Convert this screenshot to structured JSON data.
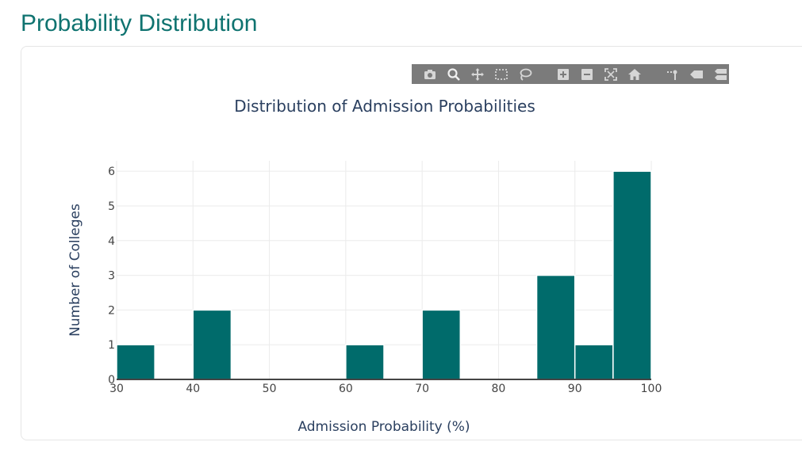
{
  "page": {
    "title": "Probability Distribution"
  },
  "modebar": {
    "background": "#7b7b7b",
    "icons": [
      "camera-icon",
      "zoom-icon",
      "pan-icon",
      "box-select-icon",
      "lasso-select-icon",
      "zoom-in-icon",
      "zoom-out-icon",
      "autoscale-icon",
      "reset-axes-icon",
      "spike-lines-icon",
      "hover-closest-icon",
      "hover-compare-icon"
    ]
  },
  "colors": {
    "title": "#0f7370",
    "bar_fill": "#006b6b",
    "bar_outline": "#ffffff",
    "grid": "#ebebeb",
    "axis_line": "#444444",
    "text": "#2a3f5f"
  },
  "chart_data": {
    "type": "bar",
    "title": "Distribution of Admission Probabilities",
    "xlabel": "Admission Probability (%)",
    "ylabel": "Number of Colleges",
    "xlim": [
      30,
      100
    ],
    "ylim": [
      0,
      6.3
    ],
    "x_ticks": [
      30,
      40,
      50,
      60,
      70,
      80,
      90,
      100
    ],
    "y_ticks": [
      0,
      1,
      2,
      3,
      4,
      5,
      6
    ],
    "grid": true,
    "bin_size": 5,
    "bins": [
      {
        "start": 30,
        "end": 35,
        "count": 1
      },
      {
        "start": 35,
        "end": 40,
        "count": 0
      },
      {
        "start": 40,
        "end": 45,
        "count": 2
      },
      {
        "start": 45,
        "end": 50,
        "count": 0
      },
      {
        "start": 50,
        "end": 55,
        "count": 0
      },
      {
        "start": 55,
        "end": 60,
        "count": 0
      },
      {
        "start": 60,
        "end": 65,
        "count": 1
      },
      {
        "start": 65,
        "end": 70,
        "count": 0
      },
      {
        "start": 70,
        "end": 75,
        "count": 2
      },
      {
        "start": 75,
        "end": 80,
        "count": 0
      },
      {
        "start": 80,
        "end": 85,
        "count": 0
      },
      {
        "start": 85,
        "end": 90,
        "count": 3
      },
      {
        "start": 90,
        "end": 95,
        "count": 1
      },
      {
        "start": 95,
        "end": 100,
        "count": 6
      }
    ]
  }
}
